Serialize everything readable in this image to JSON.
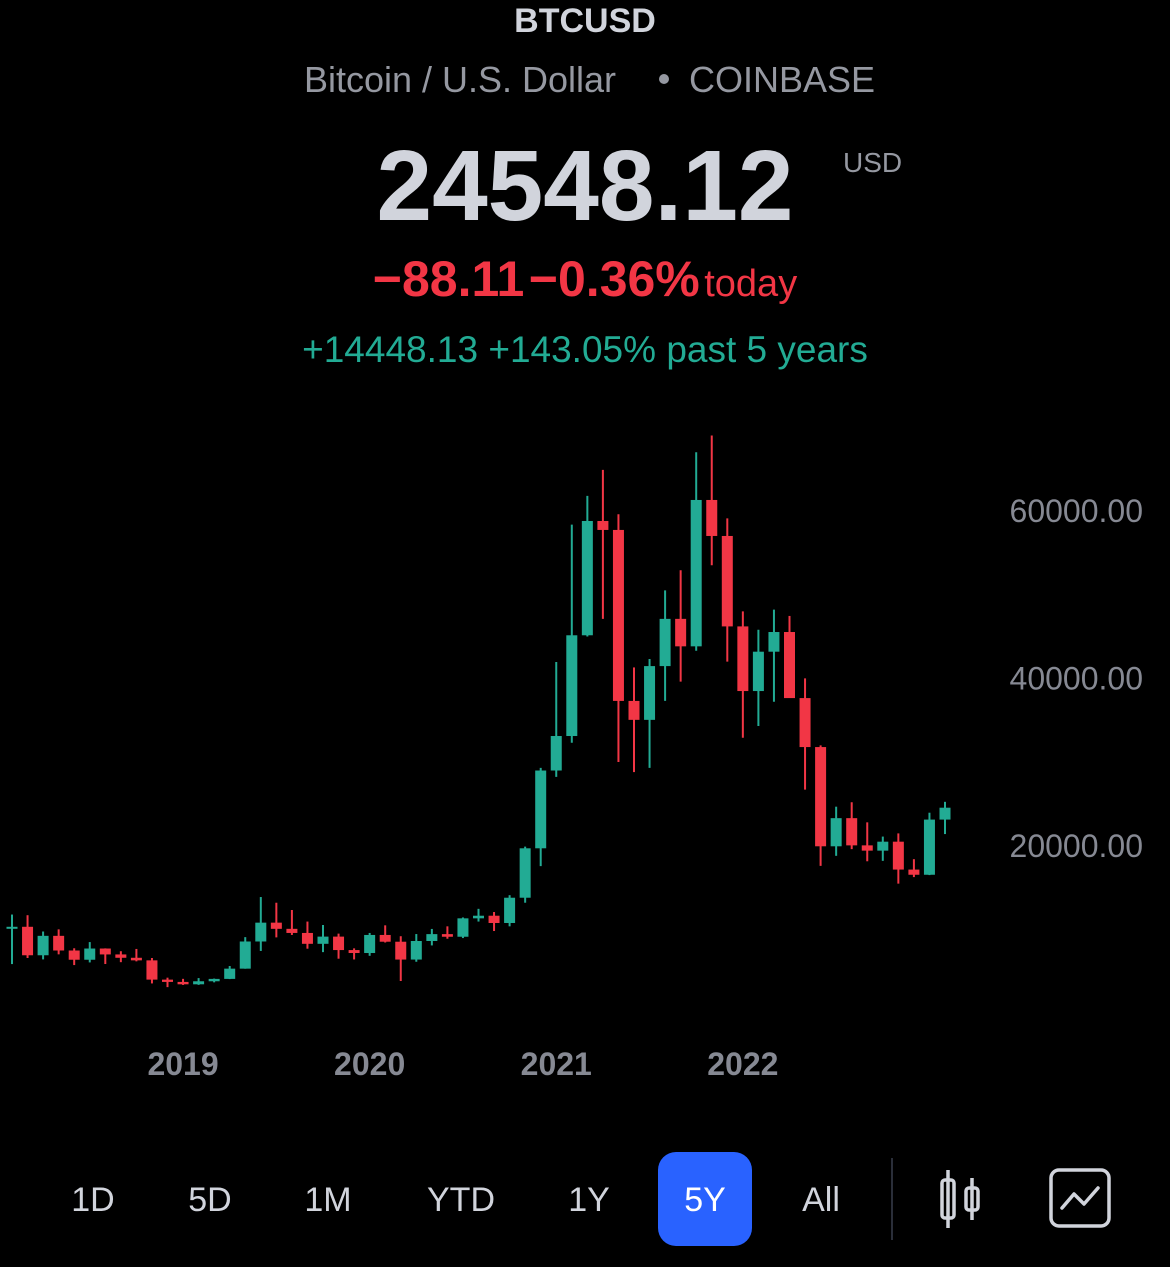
{
  "header": {
    "symbol": "BTCUSD",
    "description": "Bitcoin / U.S. Dollar",
    "exchange": "COINBASE",
    "price": "24548.12",
    "currency": "USD",
    "change_today": "−88.11",
    "change_today_pct": "−0.36%",
    "today_label": "today",
    "change_period": "+14448.13",
    "change_period_pct": "+143.05%",
    "period_label": "past 5 years"
  },
  "chart_data": {
    "type": "candlestick",
    "categories": [
      null,
      null,
      null,
      null,
      null,
      null,
      null,
      null,
      null,
      null,
      null,
      "2019",
      null,
      null,
      null,
      null,
      null,
      null,
      null,
      null,
      null,
      null,
      null,
      "2020",
      null,
      null,
      null,
      null,
      null,
      null,
      null,
      null,
      null,
      null,
      null,
      "2021",
      null,
      null,
      null,
      null,
      null,
      null,
      null,
      null,
      null,
      null,
      null,
      "2022",
      null,
      null,
      null,
      null,
      null,
      null,
      null,
      null,
      null,
      null,
      null,
      null,
      null
    ],
    "open": [
      10285,
      10326,
      6926,
      9245,
      7494,
      6391,
      7730,
      7025,
      6625,
      6317,
      4017,
      3742,
      3458,
      3820,
      4103,
      5327,
      8570,
      10820,
      10082,
      9590,
      8293,
      9153,
      7547,
      7194,
      9351,
      8543,
      6412,
      8629,
      9451,
      9137,
      11336,
      11648,
      10779,
      13797,
      19700,
      28990,
      33110,
      45140,
      58790,
      57720,
      37300,
      35040,
      41460,
      47100,
      43820,
      61300,
      57000,
      46200,
      38480,
      43180,
      45530,
      37640,
      31790,
      19940,
      23300,
      20050,
      19420,
      20490,
      17160,
      16540,
      23130
    ],
    "high": [
      11789,
      11710,
      9765,
      10020,
      7760,
      8500,
      7750,
      7410,
      7680,
      6600,
      4250,
      4110,
      4200,
      4140,
      5640,
      9090,
      13880,
      13200,
      12330,
      10950,
      10540,
      9510,
      7750,
      9590,
      10500,
      9200,
      9460,
      10070,
      10380,
      11440,
      12470,
      12090,
      14100,
      19900,
      29300,
      41950,
      58350,
      61790,
      64900,
      59600,
      41300,
      42300,
      50500,
      52900,
      66999,
      69000,
      59100,
      47990,
      45800,
      48200,
      47450,
      40000,
      31990,
      24670,
      25200,
      22800,
      21100,
      21480,
      18400,
      23950,
      25250
    ],
    "low": [
      5873,
      6600,
      6430,
      7034,
      5755,
      6070,
      5880,
      6100,
      6200,
      3560,
      3120,
      3380,
      3390,
      3690,
      4080,
      5320,
      7440,
      9060,
      9350,
      7710,
      7300,
      6515,
      6425,
      6860,
      8450,
      3850,
      6150,
      8100,
      8900,
      8980,
      10950,
      9820,
      10380,
      13200,
      17570,
      28230,
      32300,
      45000,
      47100,
      30000,
      28800,
      29300,
      37300,
      39600,
      43300,
      53500,
      42000,
      32900,
      34300,
      37200,
      37700,
      26700,
      17600,
      18800,
      19600,
      18150,
      18200,
      15480,
      16260,
      16500,
      21400
    ],
    "close": [
      10326,
      6926,
      9245,
      7494,
      6391,
      7730,
      7025,
      6625,
      6317,
      4017,
      3742,
      3458,
      3820,
      4103,
      5327,
      8570,
      10820,
      10082,
      9590,
      8293,
      9153,
      7547,
      7194,
      9351,
      8543,
      6412,
      8629,
      9451,
      9137,
      11336,
      11648,
      10779,
      13797,
      19700,
      28990,
      33110,
      45140,
      58790,
      57720,
      37300,
      35040,
      41460,
      47100,
      43820,
      61300,
      57000,
      46200,
      38480,
      43180,
      45530,
      37640,
      31790,
      19940,
      23300,
      20050,
      19420,
      20490,
      17160,
      16540,
      23130,
      24548
    ],
    "up_color": "#22ab94",
    "down_color": "#f23645",
    "ylim": [
      -2000,
      73000
    ],
    "yticks": [
      {
        "value": 20000,
        "label": "20000.00"
      },
      {
        "value": 40000,
        "label": "40000.00"
      },
      {
        "value": 60000,
        "label": "60000.00"
      }
    ],
    "grid": false
  },
  "toolbar": {
    "periods": [
      "1D",
      "5D",
      "1M",
      "YTD",
      "1Y",
      "5Y",
      "All"
    ],
    "active_period": "5Y"
  }
}
